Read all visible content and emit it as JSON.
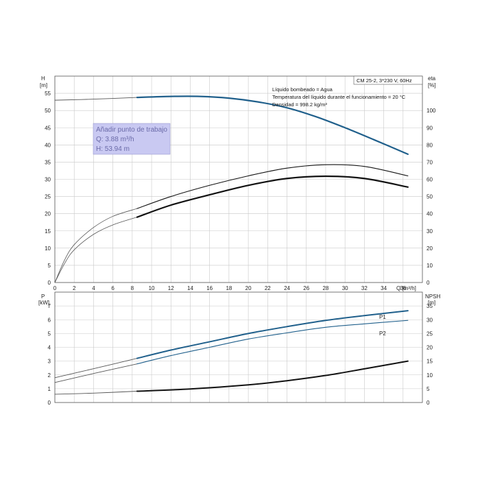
{
  "colors": {
    "blue": "#1f5f8b",
    "black": "#111111",
    "gray": "#555555",
    "grid": "#c8c8c8",
    "workpoint_bg": "#c9c9f2"
  },
  "info": {
    "model": "CM 25-2, 3*230 V, 60Hz",
    "liquid": "Líquido bombeado = Agua",
    "temperature": "Temperatura del líquido durante el funcionamiento = 20 °C",
    "density": "Densidad = 998.2 kg/m³"
  },
  "workpoint": {
    "title": "Añadir punto de trabajo",
    "q": "Q: 3.88 m³/h",
    "h": "H: 53.94 m"
  },
  "chart_data": [
    {
      "type": "line",
      "left_axis_label": [
        "H",
        "[m]"
      ],
      "right_axis_label": [
        "eta",
        "[%]"
      ],
      "x_axis_label": "Q [m³/h]",
      "xlim": [
        0,
        38
      ],
      "ylim_left": [
        0,
        60
      ],
      "ylim_right": [
        0,
        120
      ],
      "x_ticks": [
        "0",
        "2",
        "4",
        "6",
        "8",
        "10",
        "12",
        "14",
        "16",
        "18",
        "20",
        "22",
        "24",
        "26",
        "28",
        "30",
        "32",
        "34",
        "36"
      ],
      "y_left_ticks": [
        "0",
        "5",
        "10",
        "15",
        "20",
        "25",
        "30",
        "35",
        "40",
        "45",
        "50",
        "55"
      ],
      "y_right_ticks": [
        "0",
        "10",
        "20",
        "30",
        "40",
        "50",
        "60",
        "70",
        "80",
        "90",
        "100"
      ],
      "grid": true,
      "series": [
        {
          "axis": "left",
          "style": "head-thin",
          "x": [
            0,
            4,
            8.5
          ],
          "y": [
            53,
            53.3,
            53.8
          ]
        },
        {
          "axis": "left",
          "style": "head-bold",
          "x": [
            8.5,
            12,
            15,
            18,
            21,
            24,
            27,
            30,
            33,
            36.5
          ],
          "y": [
            53.8,
            54.1,
            54.1,
            53.6,
            52.5,
            50.8,
            48.2,
            45,
            41.5,
            37.3
          ]
        },
        {
          "axis": "right",
          "style": "eta-thin",
          "x": [
            0,
            1,
            2,
            4,
            6,
            8.5
          ],
          "y": [
            0,
            13,
            22,
            32,
            38.5,
            43
          ]
        },
        {
          "axis": "right",
          "style": "eta-outer",
          "x": [
            8.5,
            12,
            16,
            20,
            24,
            28,
            32,
            36.5
          ],
          "y": [
            43,
            50,
            56.5,
            62,
            66.5,
            68.5,
            67.5,
            62
          ]
        },
        {
          "axis": "right",
          "style": "eta-thin",
          "x": [
            0,
            1,
            2,
            4,
            6,
            8.5
          ],
          "y": [
            0,
            11,
            19,
            28,
            33.5,
            38
          ]
        },
        {
          "axis": "right",
          "style": "eta-bold",
          "x": [
            8.5,
            12,
            16,
            20,
            24,
            28,
            32,
            36.5
          ],
          "y": [
            38,
            45,
            51,
            56.5,
            60.5,
            61.8,
            60.5,
            55.5
          ]
        }
      ]
    },
    {
      "type": "line",
      "left_axis_label": [
        "P",
        "[kW]"
      ],
      "right_axis_label": [
        "NPSH",
        "[m]"
      ],
      "xlim": [
        0,
        38
      ],
      "ylim_left": [
        0,
        8
      ],
      "ylim_right": [
        0,
        40
      ],
      "y_left_ticks": [
        "0",
        "1",
        "2",
        "3",
        "4",
        "5",
        "6",
        "7"
      ],
      "y_right_ticks": [
        "0",
        "5",
        "10",
        "15",
        "20",
        "25",
        "30",
        "35"
      ],
      "grid": true,
      "series": [
        {
          "name": "P1",
          "axis": "left",
          "style": "p-thin",
          "x": [
            0,
            4,
            8.5
          ],
          "y": [
            1.8,
            2.45,
            3.2
          ]
        },
        {
          "name": "P1",
          "axis": "left",
          "style": "p-bold",
          "x": [
            8.5,
            12,
            16,
            20,
            24,
            28,
            32,
            36.5
          ],
          "y": [
            3.2,
            3.8,
            4.4,
            5.0,
            5.5,
            5.95,
            6.3,
            6.65
          ]
        },
        {
          "name": "P2",
          "axis": "left",
          "style": "p-thin",
          "x": [
            0,
            4,
            8.5
          ],
          "y": [
            1.45,
            2.1,
            2.8
          ]
        },
        {
          "name": "P2",
          "axis": "left",
          "style": "p2-mid",
          "x": [
            8.5,
            12,
            16,
            20,
            24,
            28,
            32,
            36.5
          ],
          "y": [
            2.8,
            3.4,
            4.0,
            4.6,
            5.05,
            5.45,
            5.7,
            5.95
          ]
        },
        {
          "axis": "right",
          "style": "npsh-thin",
          "x": [
            0,
            4,
            8.5
          ],
          "y": [
            3,
            3.4,
            4.1
          ]
        },
        {
          "axis": "right",
          "style": "npsh-bold",
          "x": [
            8.5,
            14,
            20,
            24,
            28,
            32,
            36.5
          ],
          "y": [
            4.1,
            4.9,
            6.4,
            7.9,
            9.8,
            12.2,
            15
          ]
        }
      ]
    }
  ]
}
